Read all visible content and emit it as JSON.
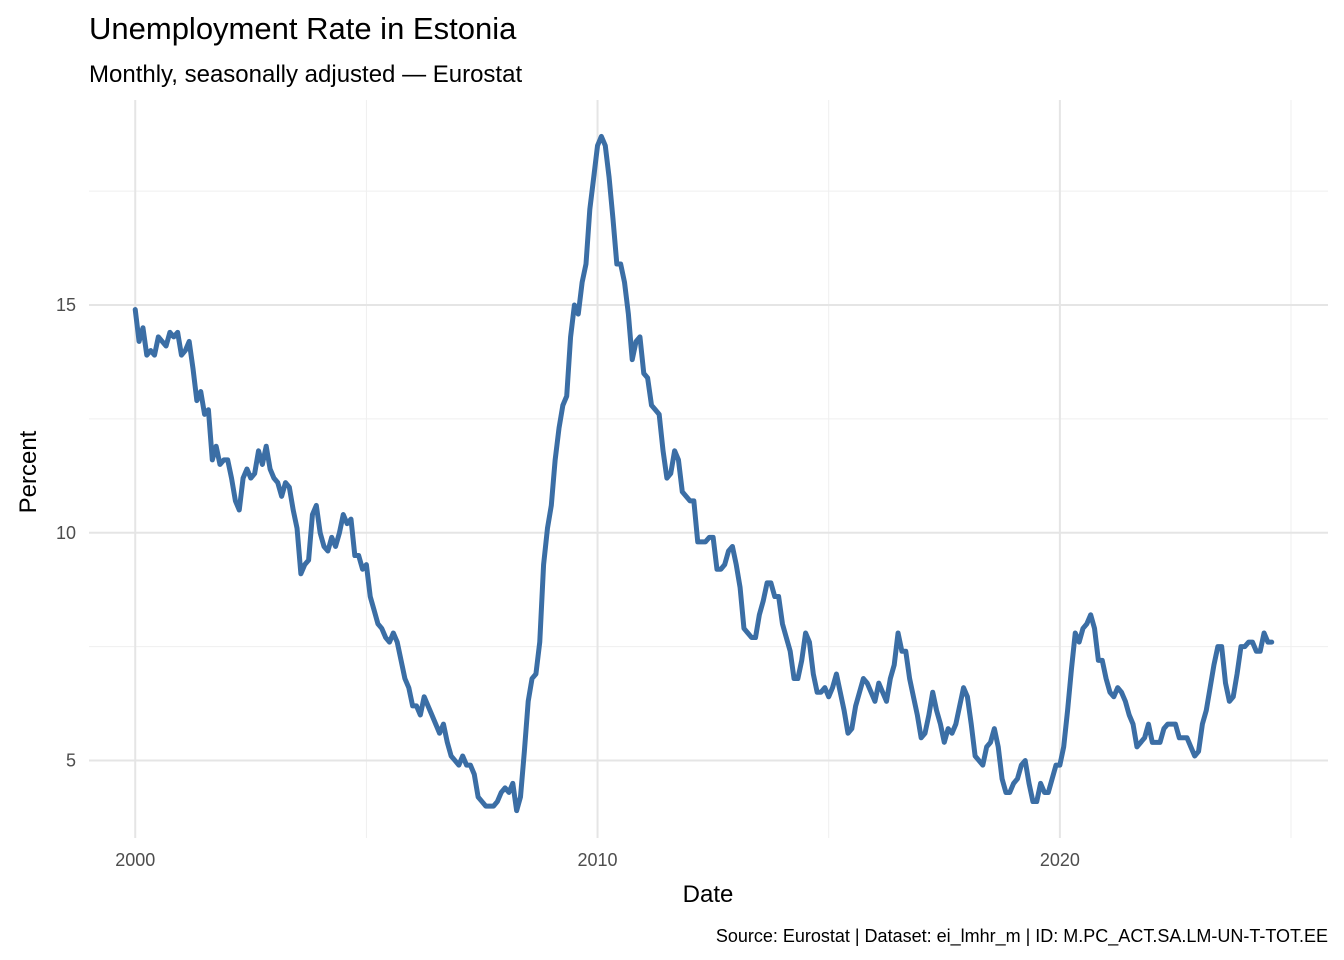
{
  "chart_data": {
    "type": "line",
    "title": "Unemployment Rate in  Estonia",
    "subtitle": "Monthly, seasonally adjusted — Eurostat",
    "xlabel": "Date",
    "ylabel": "Percent",
    "caption": "Source: Eurostat | Dataset: ei_lmhr_m | ID: M.PC_ACT.SA.LM-UN-T-TOT.EE",
    "x_ticks": [
      2000,
      2010,
      2020
    ],
    "x_tick_labels": [
      "2000",
      "2010",
      "2020"
    ],
    "y_ticks": [
      5,
      10,
      15
    ],
    "y_tick_labels": [
      "5",
      "10",
      "15"
    ],
    "xlim": [
      1999.0,
      2025.8
    ],
    "ylim": [
      3.3,
      19.5
    ],
    "grid": true,
    "legend": "none",
    "colors": {
      "line": "#3b6ea5"
    },
    "series": [
      {
        "x": [
          2000.0,
          2000.083,
          2000.167,
          2000.25,
          2000.333,
          2000.417,
          2000.5,
          2000.583,
          2000.667,
          2000.75,
          2000.833,
          2000.917,
          2001.0,
          2001.083,
          2001.167,
          2001.25,
          2001.333,
          2001.417,
          2001.5,
          2001.583,
          2001.667,
          2001.75,
          2001.833,
          2001.917,
          2002.0,
          2002.083,
          2002.167,
          2002.25,
          2002.333,
          2002.417,
          2002.5,
          2002.583,
          2002.667,
          2002.75,
          2002.833,
          2002.917,
          2003.0,
          2003.083,
          2003.167,
          2003.25,
          2003.333,
          2003.417,
          2003.5,
          2003.583,
          2003.667,
          2003.75,
          2003.833,
          2003.917,
          2004.0,
          2004.083,
          2004.167,
          2004.25,
          2004.333,
          2004.417,
          2004.5,
          2004.583,
          2004.667,
          2004.75,
          2004.833,
          2004.917,
          2005.0,
          2005.083,
          2005.167,
          2005.25,
          2005.333,
          2005.417,
          2005.5,
          2005.583,
          2005.667,
          2005.75,
          2005.833,
          2005.917,
          2006.0,
          2006.083,
          2006.167,
          2006.25,
          2006.333,
          2006.417,
          2006.5,
          2006.583,
          2006.667,
          2006.75,
          2006.833,
          2006.917,
          2007.0,
          2007.083,
          2007.167,
          2007.25,
          2007.333,
          2007.417,
          2007.5,
          2007.583,
          2007.667,
          2007.75,
          2007.833,
          2007.917,
          2008.0,
          2008.083,
          2008.167,
          2008.25,
          2008.333,
          2008.417,
          2008.5,
          2008.583,
          2008.667,
          2008.75,
          2008.833,
          2008.917,
          2009.0,
          2009.083,
          2009.167,
          2009.25,
          2009.333,
          2009.417,
          2009.5,
          2009.583,
          2009.667,
          2009.75,
          2009.833,
          2009.917,
          2010.0,
          2010.083,
          2010.167,
          2010.25,
          2010.333,
          2010.417,
          2010.5,
          2010.583,
          2010.667,
          2010.75,
          2010.833,
          2010.917,
          2011.0,
          2011.083,
          2011.167,
          2011.25,
          2011.333,
          2011.417,
          2011.5,
          2011.583,
          2011.667,
          2011.75,
          2011.833,
          2011.917,
          2012.0,
          2012.083,
          2012.167,
          2012.25,
          2012.333,
          2012.417,
          2012.5,
          2012.583,
          2012.667,
          2012.75,
          2012.833,
          2012.917,
          2013.0,
          2013.083,
          2013.167,
          2013.25,
          2013.333,
          2013.417,
          2013.5,
          2013.583,
          2013.667,
          2013.75,
          2013.833,
          2013.917,
          2014.0,
          2014.083,
          2014.167,
          2014.25,
          2014.333,
          2014.417,
          2014.5,
          2014.583,
          2014.667,
          2014.75,
          2014.833,
          2014.917,
          2015.0,
          2015.083,
          2015.167,
          2015.25,
          2015.333,
          2015.417,
          2015.5,
          2015.583,
          2015.667,
          2015.75,
          2015.833,
          2015.917,
          2016.0,
          2016.083,
          2016.167,
          2016.25,
          2016.333,
          2016.417,
          2016.5,
          2016.583,
          2016.667,
          2016.75,
          2016.833,
          2016.917,
          2017.0,
          2017.083,
          2017.167,
          2017.25,
          2017.333,
          2017.417,
          2017.5,
          2017.583,
          2017.667,
          2017.75,
          2017.833,
          2017.917,
          2018.0,
          2018.083,
          2018.167,
          2018.25,
          2018.333,
          2018.417,
          2018.5,
          2018.583,
          2018.667,
          2018.75,
          2018.833,
          2018.917,
          2019.0,
          2019.083,
          2019.167,
          2019.25,
          2019.333,
          2019.417,
          2019.5,
          2019.583,
          2019.667,
          2019.75,
          2019.833,
          2019.917,
          2020.0,
          2020.083,
          2020.167,
          2020.25,
          2020.333,
          2020.417,
          2020.5,
          2020.583,
          2020.667,
          2020.75,
          2020.833,
          2020.917,
          2021.0,
          2021.083,
          2021.167,
          2021.25,
          2021.333,
          2021.417,
          2021.5,
          2021.583,
          2021.667,
          2021.75,
          2021.833,
          2021.917,
          2022.0,
          2022.083,
          2022.167,
          2022.25,
          2022.333,
          2022.417,
          2022.5,
          2022.583,
          2022.667,
          2022.75,
          2022.833,
          2022.917,
          2023.0,
          2023.083,
          2023.167,
          2023.25,
          2023.333,
          2023.417,
          2023.5,
          2023.583,
          2023.667,
          2023.75,
          2023.833,
          2023.917,
          2024.0,
          2024.083,
          2024.167,
          2024.25,
          2024.333,
          2024.417,
          2024.5,
          2024.583
        ],
        "y": [
          14.9,
          14.2,
          14.5,
          13.9,
          14.0,
          13.9,
          14.3,
          14.2,
          14.1,
          14.4,
          14.3,
          14.4,
          13.9,
          14.0,
          14.2,
          13.6,
          12.9,
          13.1,
          12.6,
          12.7,
          11.6,
          11.9,
          11.5,
          11.6,
          11.6,
          11.2,
          10.7,
          10.5,
          11.2,
          11.4,
          11.2,
          11.3,
          11.8,
          11.5,
          11.9,
          11.4,
          11.2,
          11.1,
          10.8,
          11.1,
          11.0,
          10.5,
          10.1,
          9.1,
          9.3,
          9.4,
          10.4,
          10.6,
          10.0,
          9.7,
          9.6,
          9.9,
          9.7,
          10.0,
          10.4,
          10.2,
          10.3,
          9.5,
          9.5,
          9.2,
          9.3,
          8.6,
          8.3,
          8.0,
          7.9,
          7.7,
          7.6,
          7.8,
          7.6,
          7.2,
          6.8,
          6.6,
          6.2,
          6.2,
          6.0,
          6.4,
          6.2,
          6.0,
          5.8,
          5.6,
          5.8,
          5.4,
          5.1,
          5.0,
          4.9,
          5.1,
          4.9,
          4.9,
          4.7,
          4.2,
          4.1,
          4.0,
          4.0,
          4.0,
          4.1,
          4.3,
          4.4,
          4.3,
          4.5,
          3.9,
          4.2,
          5.2,
          6.3,
          6.8,
          6.9,
          7.6,
          9.3,
          10.1,
          10.6,
          11.6,
          12.3,
          12.8,
          13.0,
          14.3,
          15.0,
          14.8,
          15.5,
          15.9,
          17.1,
          17.8,
          18.5,
          18.7,
          18.5,
          17.8,
          16.9,
          15.9,
          15.9,
          15.5,
          14.8,
          13.8,
          14.2,
          14.3,
          13.5,
          13.4,
          12.8,
          12.7,
          12.6,
          11.8,
          11.2,
          11.3,
          11.8,
          11.6,
          10.9,
          10.8,
          10.7,
          10.7,
          9.8,
          9.8,
          9.8,
          9.9,
          9.9,
          9.2,
          9.2,
          9.3,
          9.6,
          9.7,
          9.3,
          8.8,
          7.9,
          7.8,
          7.7,
          7.7,
          8.2,
          8.5,
          8.9,
          8.9,
          8.6,
          8.6,
          8.0,
          7.7,
          7.4,
          6.8,
          6.8,
          7.2,
          7.8,
          7.6,
          6.9,
          6.5,
          6.5,
          6.6,
          6.4,
          6.6,
          6.9,
          6.5,
          6.1,
          5.6,
          5.7,
          6.2,
          6.5,
          6.8,
          6.7,
          6.5,
          6.3,
          6.7,
          6.5,
          6.3,
          6.8,
          7.1,
          7.8,
          7.4,
          7.4,
          6.8,
          6.4,
          6.0,
          5.5,
          5.6,
          6.0,
          6.5,
          6.1,
          5.8,
          5.4,
          5.7,
          5.6,
          5.8,
          6.2,
          6.6,
          6.4,
          5.8,
          5.1,
          5.0,
          4.9,
          5.3,
          5.4,
          5.7,
          5.3,
          4.6,
          4.3,
          4.3,
          4.5,
          4.6,
          4.9,
          5.0,
          4.5,
          4.1,
          4.1,
          4.5,
          4.3,
          4.3,
          4.6,
          4.9,
          4.9,
          5.3,
          6.1,
          7.0,
          7.8,
          7.6,
          7.9,
          8.0,
          8.2,
          7.9,
          7.2,
          7.2,
          6.8,
          6.5,
          6.4,
          6.6,
          6.5,
          6.3,
          6.0,
          5.8,
          5.3,
          5.4,
          5.5,
          5.8,
          5.4,
          5.4,
          5.4,
          5.7,
          5.8,
          5.8,
          5.8,
          5.5,
          5.5,
          5.5,
          5.3,
          5.1,
          5.2,
          5.8,
          6.1,
          6.6,
          7.1,
          7.5,
          7.5,
          6.7,
          6.3,
          6.4,
          6.9,
          7.5,
          7.5,
          7.6,
          7.6,
          7.4,
          7.4,
          7.8,
          7.6,
          7.6
        ]
      }
    ]
  }
}
